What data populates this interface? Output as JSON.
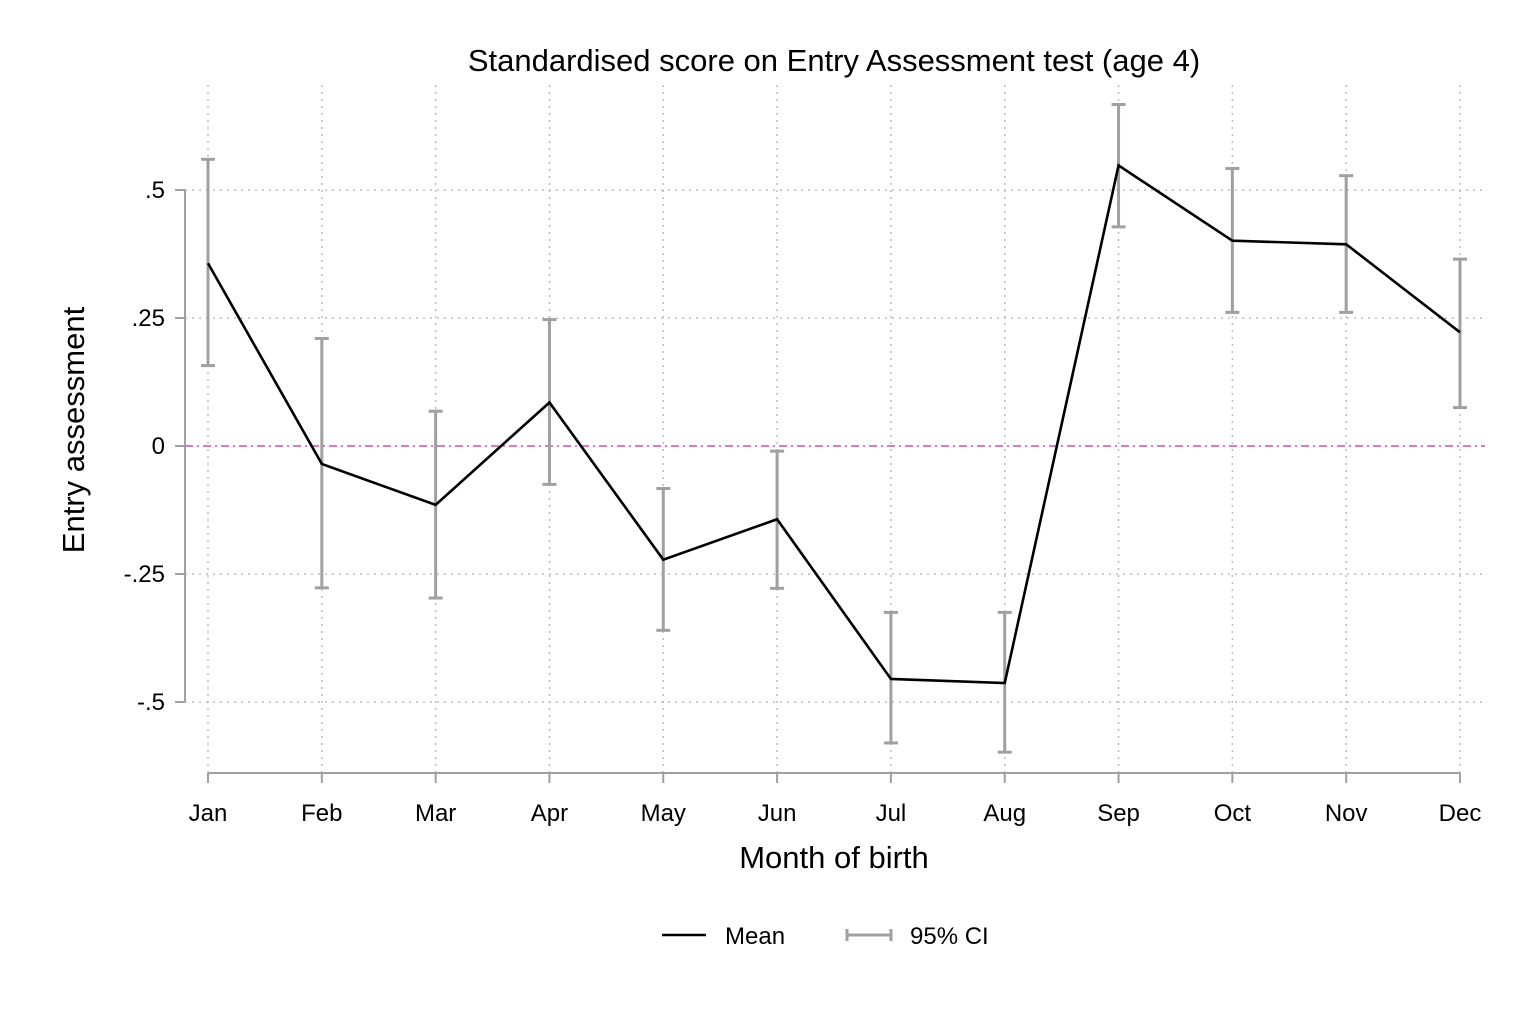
{
  "chart_data": {
    "type": "line",
    "title": "Standardised score on Entry Assessment test (age 4)",
    "xlabel": "Month of birth",
    "ylabel": "Entry assessment",
    "categories": [
      "Jan",
      "Feb",
      "Mar",
      "Apr",
      "May",
      "Jun",
      "Jul",
      "Aug",
      "Sep",
      "Oct",
      "Nov",
      "Dec"
    ],
    "y_ticks": [
      0.5,
      0.25,
      0,
      -0.25,
      -0.5
    ],
    "y_tick_labels": [
      ".5",
      ".25",
      "0",
      "-.25",
      "-.5"
    ],
    "ylim": [
      -0.64,
      0.72
    ],
    "grid": true,
    "reference_line": {
      "y": 0,
      "color": "#d66aa8",
      "style": "dashed"
    },
    "series": [
      {
        "name": "Mean",
        "color": "#000000",
        "values": [
          0.357,
          -0.035,
          -0.115,
          0.085,
          -0.222,
          -0.143,
          -0.455,
          -0.463,
          0.548,
          0.401,
          0.394,
          0.222
        ]
      },
      {
        "name": "95% CI",
        "color": "#a0a0a0",
        "lower": [
          0.157,
          -0.277,
          -0.297,
          -0.075,
          -0.36,
          -0.278,
          -0.58,
          -0.598,
          0.428,
          0.261,
          0.261,
          0.075
        ],
        "upper": [
          0.56,
          0.21,
          0.068,
          0.247,
          -0.083,
          -0.01,
          -0.325,
          -0.325,
          0.667,
          0.542,
          0.528,
          0.365
        ]
      }
    ],
    "legend": {
      "position": "bottom",
      "items": [
        {
          "label": "Mean",
          "color": "#000000"
        },
        {
          "label": "95% CI",
          "color": "#a0a0a0"
        }
      ]
    }
  }
}
